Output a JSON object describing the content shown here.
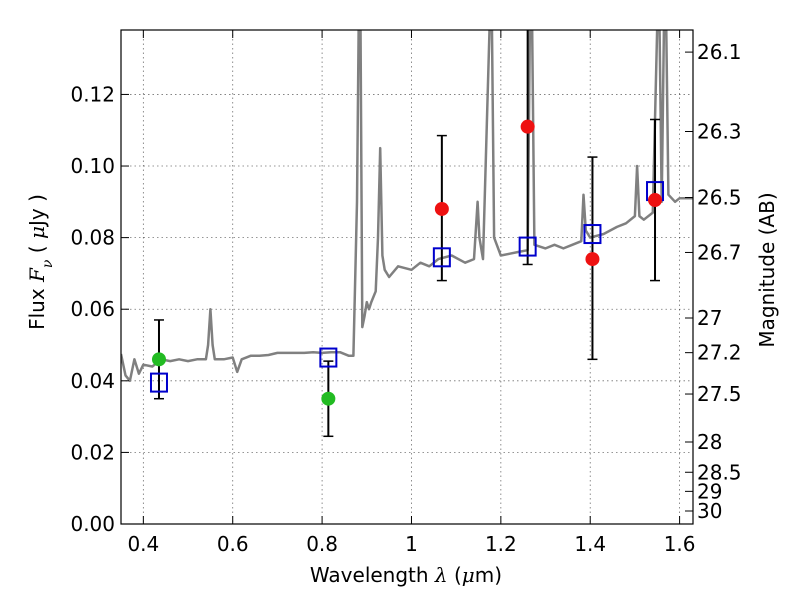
{
  "chart_data": {
    "type": "scatter",
    "xlim": [
      0.35,
      1.63
    ],
    "ylim": [
      0.0,
      0.138
    ],
    "x_ticks": [
      0.4,
      0.6,
      0.8,
      1.0,
      1.2,
      1.4,
      1.6
    ],
    "x_tick_labels": [
      "0.4",
      "0.6",
      "0.8",
      "1",
      "1.2",
      "1.4",
      "1.6"
    ],
    "y_ticks": [
      0.0,
      0.02,
      0.04,
      0.06,
      0.08,
      0.1,
      0.12
    ],
    "y_tick_labels": [
      "0.00",
      "0.02",
      "0.04",
      "0.06",
      "0.08",
      "0.10",
      "0.12"
    ],
    "xlabel_parts": [
      "Wavelength  ",
      "λ",
      " (",
      "μ",
      "m)"
    ],
    "ylabel_parts": [
      "Flux  ",
      "F",
      "ν",
      "  ( ",
      "μ",
      "Jy )"
    ],
    "right_label": "Magnitude (AB)",
    "right_ticks": [
      {
        "mag": 26.1,
        "label": "26.1"
      },
      {
        "mag": 26.3,
        "label": "26.3"
      },
      {
        "mag": 26.5,
        "label": "26.5"
      },
      {
        "mag": 26.7,
        "label": "26.7"
      },
      {
        "mag": 27.0,
        "label": "27"
      },
      {
        "mag": 27.2,
        "label": "27.2"
      },
      {
        "mag": 27.5,
        "label": "27.5"
      },
      {
        "mag": 28.0,
        "label": "28"
      },
      {
        "mag": 28.5,
        "label": "28.5"
      },
      {
        "mag": 29.0,
        "label": "29"
      },
      {
        "mag": 30.0,
        "label": "30"
      }
    ],
    "grid": true,
    "colors": {
      "model": "#808080",
      "optical": "#22bb22",
      "nir": "#ee1111",
      "synthetic": "#0000cc",
      "errorbar": "#000000"
    },
    "series": [
      {
        "kind": "model",
        "points": [
          [
            0.35,
            0.0475
          ],
          [
            0.36,
            0.0415
          ],
          [
            0.37,
            0.04
          ],
          [
            0.38,
            0.046
          ],
          [
            0.39,
            0.042
          ],
          [
            0.4,
            0.0445
          ],
          [
            0.42,
            0.044
          ],
          [
            0.44,
            0.046
          ],
          [
            0.46,
            0.0455
          ],
          [
            0.48,
            0.046
          ],
          [
            0.5,
            0.0455
          ],
          [
            0.52,
            0.046
          ],
          [
            0.54,
            0.046
          ],
          [
            0.545,
            0.05
          ],
          [
            0.55,
            0.06
          ],
          [
            0.555,
            0.05
          ],
          [
            0.56,
            0.046
          ],
          [
            0.58,
            0.046
          ],
          [
            0.6,
            0.0465
          ],
          [
            0.61,
            0.0425
          ],
          [
            0.62,
            0.046
          ],
          [
            0.64,
            0.047
          ],
          [
            0.66,
            0.047
          ],
          [
            0.68,
            0.0472
          ],
          [
            0.7,
            0.0478
          ],
          [
            0.72,
            0.0478
          ],
          [
            0.74,
            0.0478
          ],
          [
            0.76,
            0.0478
          ],
          [
            0.78,
            0.048
          ],
          [
            0.8,
            0.0478
          ],
          [
            0.82,
            0.048
          ],
          [
            0.84,
            0.048
          ],
          [
            0.86,
            0.047
          ],
          [
            0.87,
            0.047
          ],
          [
            0.878,
            0.09
          ],
          [
            0.882,
            0.14
          ],
          [
            0.886,
            0.14
          ],
          [
            0.89,
            0.055
          ],
          [
            0.895,
            0.058
          ],
          [
            0.9,
            0.062
          ],
          [
            0.905,
            0.06
          ],
          [
            0.91,
            0.062
          ],
          [
            0.92,
            0.065
          ],
          [
            0.925,
            0.08
          ],
          [
            0.93,
            0.105
          ],
          [
            0.935,
            0.075
          ],
          [
            0.94,
            0.071
          ],
          [
            0.95,
            0.069
          ],
          [
            0.97,
            0.072
          ],
          [
            1.0,
            0.071
          ],
          [
            1.02,
            0.073
          ],
          [
            1.04,
            0.072
          ],
          [
            1.06,
            0.074
          ],
          [
            1.09,
            0.075
          ],
          [
            1.12,
            0.073
          ],
          [
            1.14,
            0.074
          ],
          [
            1.148,
            0.09
          ],
          [
            1.152,
            0.08
          ],
          [
            1.16,
            0.074
          ],
          [
            1.175,
            0.14
          ],
          [
            1.18,
            0.14
          ],
          [
            1.185,
            0.08
          ],
          [
            1.2,
            0.075
          ],
          [
            1.22,
            0.0755
          ],
          [
            1.24,
            0.076
          ],
          [
            1.26,
            0.0765
          ],
          [
            1.265,
            0.14
          ],
          [
            1.27,
            0.14
          ],
          [
            1.275,
            0.078
          ],
          [
            1.3,
            0.077
          ],
          [
            1.32,
            0.078
          ],
          [
            1.34,
            0.077
          ],
          [
            1.36,
            0.078
          ],
          [
            1.38,
            0.079
          ],
          [
            1.385,
            0.092
          ],
          [
            1.39,
            0.082
          ],
          [
            1.4,
            0.08
          ],
          [
            1.43,
            0.081
          ],
          [
            1.46,
            0.083
          ],
          [
            1.48,
            0.084
          ],
          [
            1.5,
            0.086
          ],
          [
            1.505,
            0.1
          ],
          [
            1.51,
            0.086
          ],
          [
            1.52,
            0.085
          ],
          [
            1.54,
            0.087
          ],
          [
            1.55,
            0.14
          ],
          [
            1.555,
            0.14
          ],
          [
            1.56,
            0.09
          ],
          [
            1.565,
            0.14
          ],
          [
            1.57,
            0.14
          ],
          [
            1.575,
            0.092
          ],
          [
            1.59,
            0.09
          ],
          [
            1.6,
            0.091
          ],
          [
            1.62,
            0.091
          ],
          [
            1.63,
            0.091
          ]
        ]
      },
      {
        "kind": "optical",
        "points": [
          {
            "x": 0.435,
            "y": 0.046,
            "yerr_lo": 0.035,
            "yerr_hi": 0.057
          },
          {
            "x": 0.814,
            "y": 0.035,
            "yerr_lo": 0.0245,
            "yerr_hi": 0.0455
          }
        ]
      },
      {
        "kind": "nir",
        "points": [
          {
            "x": 1.068,
            "y": 0.088,
            "yerr_lo": 0.068,
            "yerr_hi": 0.1085
          },
          {
            "x": 1.26,
            "y": 0.111,
            "yerr_lo": 0.0725,
            "yerr_hi": 0.14
          },
          {
            "x": 1.405,
            "y": 0.074,
            "yerr_lo": 0.046,
            "yerr_hi": 0.1025
          },
          {
            "x": 1.545,
            "y": 0.0905,
            "yerr_lo": 0.068,
            "yerr_hi": 0.113
          }
        ]
      },
      {
        "kind": "synthetic",
        "points": [
          {
            "x": 0.435,
            "y": 0.0395
          },
          {
            "x": 0.814,
            "y": 0.0465
          },
          {
            "x": 1.068,
            "y": 0.0745
          },
          {
            "x": 1.26,
            "y": 0.0775
          },
          {
            "x": 1.405,
            "y": 0.081
          },
          {
            "x": 1.545,
            "y": 0.093
          }
        ]
      }
    ]
  }
}
